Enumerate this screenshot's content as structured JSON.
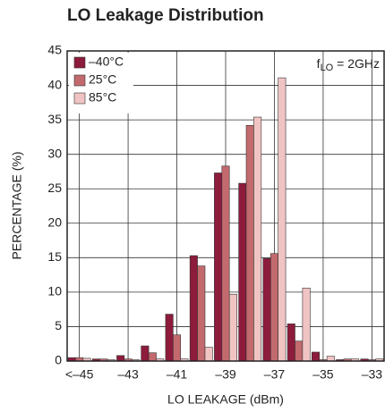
{
  "chart_data": {
    "type": "bar",
    "title": "LO Leakage Distribution",
    "xlabel": "LO LEAKAGE (dBm)",
    "ylabel": "PERCENTAGE (%)",
    "annotation": {
      "main": "f",
      "sub": "LO",
      "rest": " = 2GHz"
    },
    "categories": [
      "<–45",
      null,
      "–43",
      null,
      "–41",
      null,
      "–39",
      null,
      "–37",
      null,
      "–35",
      null,
      "–33"
    ],
    "series": [
      {
        "name": "–40°C",
        "color": "#8c1b3c",
        "values": [
          0.5,
          0.3,
          0.8,
          2.2,
          6.8,
          15.3,
          27.3,
          25.8,
          14.9,
          5.4,
          1.3,
          0.2,
          0.3
        ]
      },
      {
        "name": "25°C",
        "color": "#c26a6e",
        "values": [
          0.5,
          0.3,
          0.3,
          1.2,
          3.8,
          13.8,
          28.3,
          34.2,
          15.6,
          2.9,
          0.2,
          0.3,
          0.2
        ]
      },
      {
        "name": "85°C",
        "color": "#f1c4c4",
        "values": [
          0.4,
          0.2,
          0.2,
          0.3,
          0.3,
          2.0,
          9.7,
          35.4,
          41.1,
          10.6,
          0.7,
          0.3,
          0.3
        ]
      }
    ],
    "ylim": [
      0,
      45
    ],
    "yticks": [
      0,
      5,
      10,
      15,
      20,
      25,
      30,
      35,
      40,
      45
    ],
    "grid": true,
    "legend": "top-left"
  }
}
